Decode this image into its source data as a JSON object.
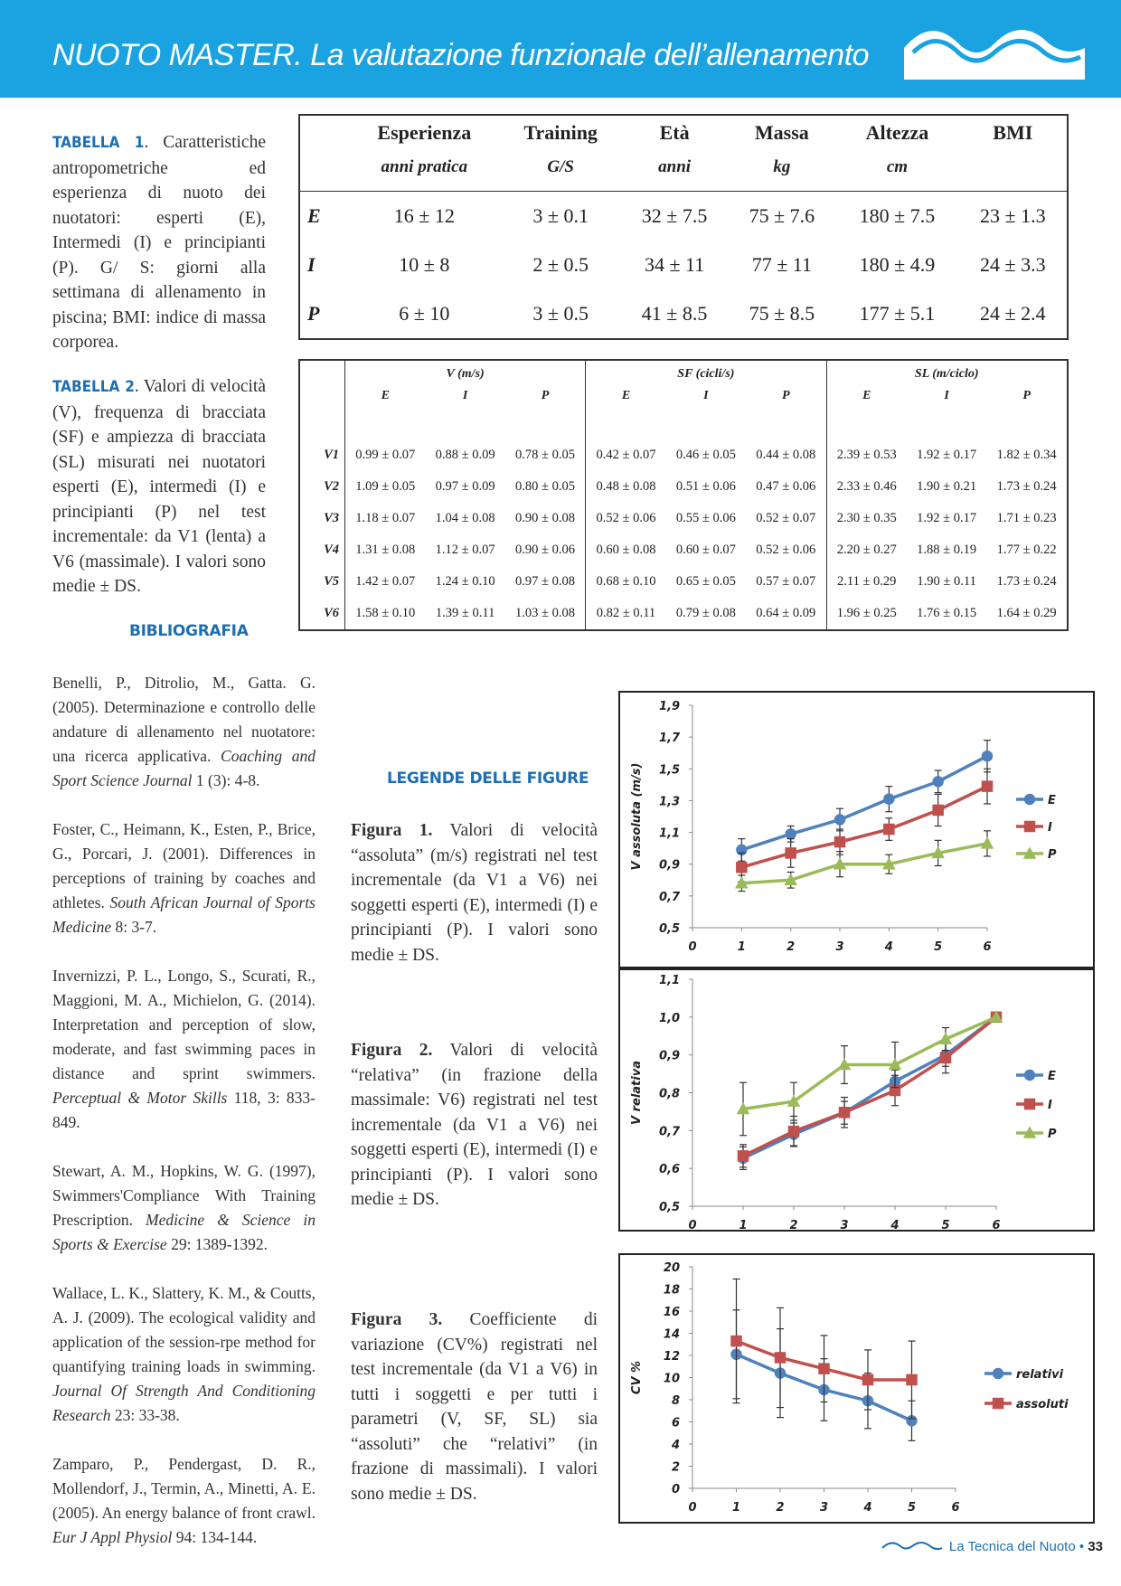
{
  "header": {
    "title": "NUOTO MASTER. La valutazione funzionale dell’allenamento"
  },
  "table1": {
    "caption_label": "TABELLA 1",
    "caption": ". Caratteristiche antropometriche ed esperienza di nuoto dei nuotatori: esperti (E), Intermedi (I) e principianti (P). G/ S: giorni alla settimana di allenamento in piscina; BMI: indice di massa corporea.",
    "columns": [
      {
        "name": "Esperienza",
        "unit": "anni pratica"
      },
      {
        "name": "Training",
        "unit": "G/S"
      },
      {
        "name": "Età",
        "unit": "anni"
      },
      {
        "name": "Massa",
        "unit": "kg"
      },
      {
        "name": "Altezza",
        "unit": "cm"
      },
      {
        "name": "BMI"
      }
    ],
    "rows": [
      {
        "label": "E",
        "values": [
          "16 ± 12",
          "3 ± 0.1",
          "32 ± 7.5",
          "75 ± 7.6",
          "180 ± 7.5",
          "23 ± 1.3"
        ]
      },
      {
        "label": "I",
        "values": [
          "10 ± 8",
          "2 ± 0.5",
          "34 ± 11",
          "77 ± 11",
          "180 ± 4.9",
          "24 ± 3.3"
        ]
      },
      {
        "label": "P",
        "values": [
          "6 ± 10",
          "3 ± 0.5",
          "41 ± 8.5",
          "75 ± 8.5",
          "177 ± 5.1",
          "24 ± 2.4"
        ]
      }
    ]
  },
  "table2": {
    "caption_label": "TABELLA 2",
    "caption": ". Valori di velocità (V), frequenza di bracciata (SF) e ampiezza di bracciata (SL) misurati nei nuotatori esperti (E), intermedi (I) e principianti (P) nel test incrementale: da V1 (lenta) a V6 (massimale). I valori sono medie ± DS.",
    "groups": [
      {
        "name": "V (m/s)",
        "subs": [
          "E",
          "I",
          "P"
        ]
      },
      {
        "name": "SF (cicli/s)",
        "subs": [
          "E",
          "I",
          "P"
        ]
      },
      {
        "name": "SL (m/ciclo)",
        "subs": [
          "E",
          "I",
          "P"
        ]
      }
    ],
    "rows": [
      {
        "label": "V1",
        "values": [
          "0.99 ± 0.07",
          "0.88 ± 0.09",
          "0.78 ± 0.05",
          "0.42 ± 0.07",
          "0.46 ± 0.05",
          "0.44 ± 0.08",
          "2.39 ± 0.53",
          "1.92 ± 0.17",
          "1.82 ± 0.34"
        ]
      },
      {
        "label": "V2",
        "values": [
          "1.09 ± 0.05",
          "0.97 ± 0.09",
          "0.80 ± 0.05",
          "0.48 ± 0.08",
          "0.51 ± 0.06",
          "0.47 ± 0.06",
          "2.33 ± 0.46",
          "1.90 ± 0.21",
          "1.73 ± 0.24"
        ]
      },
      {
        "label": "V3",
        "values": [
          "1.18 ± 0.07",
          "1.04 ± 0.08",
          "0.90 ± 0.08",
          "0.52 ± 0.06",
          "0.55 ± 0.06",
          "0.52 ± 0.07",
          "2.30 ± 0.35",
          "1.92 ± 0.17",
          "1.71 ± 0.23"
        ]
      },
      {
        "label": "V4",
        "values": [
          "1.31 ± 0.08",
          "1.12 ± 0.07",
          "0.90 ± 0.06",
          "0.60 ± 0.08",
          "0.60 ± 0.07",
          "0.52 ± 0.06",
          "2.20 ± 0.27",
          "1.88 ± 0.19",
          "1.77 ± 0.22"
        ]
      },
      {
        "label": "V5",
        "values": [
          "1.42 ± 0.07",
          "1.24 ± 0.10",
          "0.97 ± 0.08",
          "0.68 ± 0.10",
          "0.65 ± 0.05",
          "0.57 ± 0.07",
          "2.11 ± 0.29",
          "1.90 ± 0.11",
          "1.73 ± 0.24"
        ]
      },
      {
        "label": "V6",
        "values": [
          "1.58 ± 0.10",
          "1.39 ± 0.11",
          "1.03 ± 0.08",
          "0.82 ± 0.11",
          "0.79 ± 0.08",
          "0.64 ± 0.09",
          "1.96 ± 0.25",
          "1.76 ± 0.15",
          "1.64 ± 0.29"
        ]
      }
    ]
  },
  "bibliography": {
    "heading": "BIBLIOGRAFIA",
    "entries": [
      {
        "text": "Benelli, P., Ditrolio, M., Gatta. G. (2005). Determinazione e controllo delle andature di allenamento nel nuotatore: una ricerca applicativa.",
        "journal": "Coaching and Sport Science Journal",
        "ref": "1 (3): 4-8."
      },
      {
        "text": "Foster, C., Heimann, K., Esten, P., Brice, G., Porcari, J. (2001). Differences in perceptions of training by coaches and athletes.",
        "journal": "South African Journal of Sports Medicine",
        "ref": "8: 3-7."
      },
      {
        "text": "Invernizzi, P. L., Longo, S., Scurati, R., Maggioni, M. A., Michielon, G. (2014). Interpretation and perception of slow, moderate, and fast swimming paces in distance and sprint swimmers.",
        "journal": "Perceptual & Motor Skills",
        "ref": "118, 3: 833-849."
      },
      {
        "text": "Stewart, A. M., Hopkins, W. G. (1997), Swimmers'Compliance With Training Prescription.",
        "journal": "Medicine & Science in Sports & Exercise",
        "ref": "29: 1389-1392."
      },
      {
        "text": "Wallace, L. K., Slattery, K. M., & Coutts, A. J. (2009). The ecological validity and application of the session-rpe method for quantifying training loads in swimming.",
        "journal": "Journal Of Strength And Conditioning Research",
        "ref": "23: 33-38."
      },
      {
        "text": "Zamparo, P., Pendergast, D. R., Mollendorf, J., Termin, A., Minetti, A. E. (2005). An energy balance of front crawl.",
        "journal": "Eur J Appl Physiol",
        "ref": "94: 134-144."
      }
    ]
  },
  "legends": {
    "heading": "LEGENDE DELLE FIGURE",
    "figures": [
      {
        "label": "Figura 1.",
        "text": "Valori di velocità “assoluta” (m/s) registrati nel test incrementale (da V1 a V6) nei soggetti esperti (E), intermedi (I) e principianti (P). I valori sono medie ± DS."
      },
      {
        "label": "Figura 2.",
        "text": "Valori di velocità “relativa” (in frazione della massimale: V6) registrati nel test incrementale (da V1 a V6) nei soggetti esperti (E), intermedi (I) e principianti (P). I valori sono medie ± DS."
      },
      {
        "label": "Figura 3.",
        "text": "Coefficiente di variazione (CV%) registrati nel test incrementale (da V1 a V6) in tutti i soggetti e per tutti i parametri (V, SF, SL) sia “assoluti” che “relativi” (in frazione di massimali). I valori sono medie ± DS."
      }
    ]
  },
  "chart_data": [
    {
      "type": "line",
      "y_label": "V assoluta (m/s)",
      "x": [
        1,
        2,
        3,
        4,
        5,
        6
      ],
      "xlim": [
        0,
        6
      ],
      "xticks": [
        0,
        1,
        2,
        3,
        4,
        5,
        6
      ],
      "ylim": [
        0.5,
        1.9
      ],
      "yticks": [
        {
          "value": 0.5,
          "label": "0,5"
        },
        {
          "value": 0.7,
          "label": "0,7"
        },
        {
          "value": 0.9,
          "label": "0,9"
        },
        {
          "value": 1.1,
          "label": "1,1"
        },
        {
          "value": 1.3,
          "label": "1,3"
        },
        {
          "value": 1.5,
          "label": "1,5"
        },
        {
          "value": 1.7,
          "label": "1,7"
        },
        {
          "value": 1.9,
          "label": "1,9"
        }
      ],
      "grid": false,
      "legend": "right",
      "series": [
        {
          "name": "E",
          "color": "#4f81bd",
          "marker": "circle",
          "values": [
            0.99,
            1.09,
            1.18,
            1.31,
            1.42,
            1.58
          ],
          "errors": [
            0.07,
            0.05,
            0.07,
            0.08,
            0.07,
            0.1
          ]
        },
        {
          "name": "I",
          "color": "#c0504d",
          "marker": "square",
          "values": [
            0.88,
            0.97,
            1.04,
            1.12,
            1.24,
            1.39
          ],
          "errors": [
            0.09,
            0.09,
            0.08,
            0.07,
            0.1,
            0.11
          ]
        },
        {
          "name": "P",
          "color": "#9bbb59",
          "marker": "triangle",
          "values": [
            0.78,
            0.8,
            0.9,
            0.9,
            0.97,
            1.03
          ],
          "errors": [
            0.05,
            0.05,
            0.08,
            0.06,
            0.08,
            0.08
          ]
        }
      ]
    },
    {
      "type": "line",
      "y_label": "V relativa",
      "x": [
        1,
        2,
        3,
        4,
        5,
        6
      ],
      "xlim": [
        0,
        6
      ],
      "xticks": [
        0,
        1,
        2,
        3,
        4,
        5,
        6
      ],
      "ylim": [
        0.5,
        1.1
      ],
      "yticks": [
        {
          "value": 0.5,
          "label": "0,5"
        },
        {
          "value": 0.6,
          "label": "0,6"
        },
        {
          "value": 0.7,
          "label": "0,7"
        },
        {
          "value": 0.8,
          "label": "0,8"
        },
        {
          "value": 0.9,
          "label": "0,9"
        },
        {
          "value": 1.0,
          "label": "1,0"
        },
        {
          "value": 1.1,
          "label": "1,1"
        }
      ],
      "grid": false,
      "legend": "right",
      "series": [
        {
          "name": "E",
          "color": "#4f81bd",
          "marker": "circle",
          "values": [
            0.627,
            0.69,
            0.747,
            0.83,
            0.9,
            1.0
          ],
          "errors": [
            0.03,
            0.03,
            0.03,
            0.03,
            0.03,
            0
          ]
        },
        {
          "name": "I",
          "color": "#c0504d",
          "marker": "square",
          "values": [
            0.633,
            0.698,
            0.748,
            0.806,
            0.892,
            1.0
          ],
          "errors": [
            0.03,
            0.04,
            0.04,
            0.04,
            0.04,
            0
          ]
        },
        {
          "name": "P",
          "color": "#9bbb59",
          "marker": "triangle",
          "values": [
            0.757,
            0.777,
            0.874,
            0.874,
            0.942,
            1.0
          ],
          "errors": [
            0.07,
            0.05,
            0.05,
            0.06,
            0.03,
            0
          ]
        }
      ]
    },
    {
      "type": "line",
      "y_label": "CV %",
      "x": [
        1,
        2,
        3,
        4,
        5
      ],
      "xlim": [
        0,
        6
      ],
      "xticks": [
        0,
        1,
        2,
        3,
        4,
        5,
        6
      ],
      "ylim": [
        0,
        20
      ],
      "yticks": [
        0,
        2,
        4,
        6,
        8,
        10,
        12,
        14,
        16,
        18,
        20
      ],
      "grid": false,
      "legend": "right",
      "series": [
        {
          "name": "relativi",
          "color": "#4f81bd",
          "marker": "circle",
          "values": [
            12.1,
            10.4,
            8.9,
            7.9,
            6.1
          ],
          "errors": [
            4.0,
            4.0,
            2.8,
            2.5,
            1.8
          ]
        },
        {
          "name": "assoluti",
          "color": "#c0504d",
          "marker": "square",
          "values": [
            13.3,
            11.8,
            10.8,
            9.8,
            9.8
          ],
          "errors": [
            5.6,
            4.5,
            3.0,
            2.7,
            3.5
          ]
        }
      ]
    }
  ],
  "footer": {
    "journal": "La Tecnica del Nuoto",
    "separator": "•",
    "page": "33"
  }
}
